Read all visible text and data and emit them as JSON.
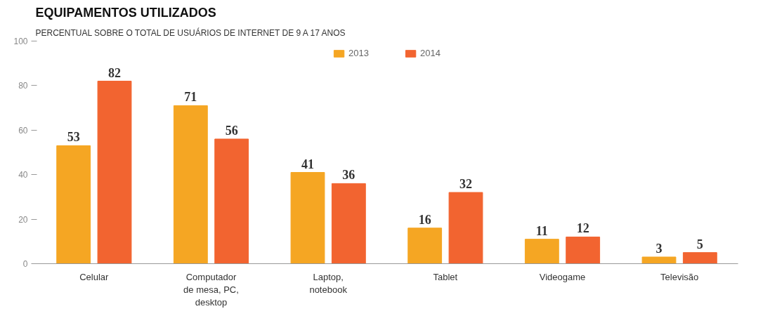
{
  "chart_data": {
    "type": "bar",
    "title": "EQUIPAMENTOS UTILIZADOS",
    "subtitle": "PERCENTUAL SOBRE O TOTAL DE USUÁRIOS DE INTERNET DE 9 A 17 ANOS",
    "categories": [
      "Celular",
      "Computador\nde mesa, PC,\ndesktop",
      "Laptop,\nnotebook",
      "Tablet",
      "Videogame",
      "Televisão"
    ],
    "series": [
      {
        "name": "2013",
        "color": "#f5a623",
        "values": [
          53,
          71,
          41,
          16,
          11,
          3
        ]
      },
      {
        "name": "2014",
        "color": "#f26430",
        "values": [
          82,
          56,
          36,
          32,
          12,
          5
        ]
      }
    ],
    "ylim": [
      0,
      100
    ],
    "yticks": [
      0,
      20,
      40,
      60,
      80,
      100
    ],
    "grid": false,
    "legend": "top",
    "data_labels": true
  }
}
